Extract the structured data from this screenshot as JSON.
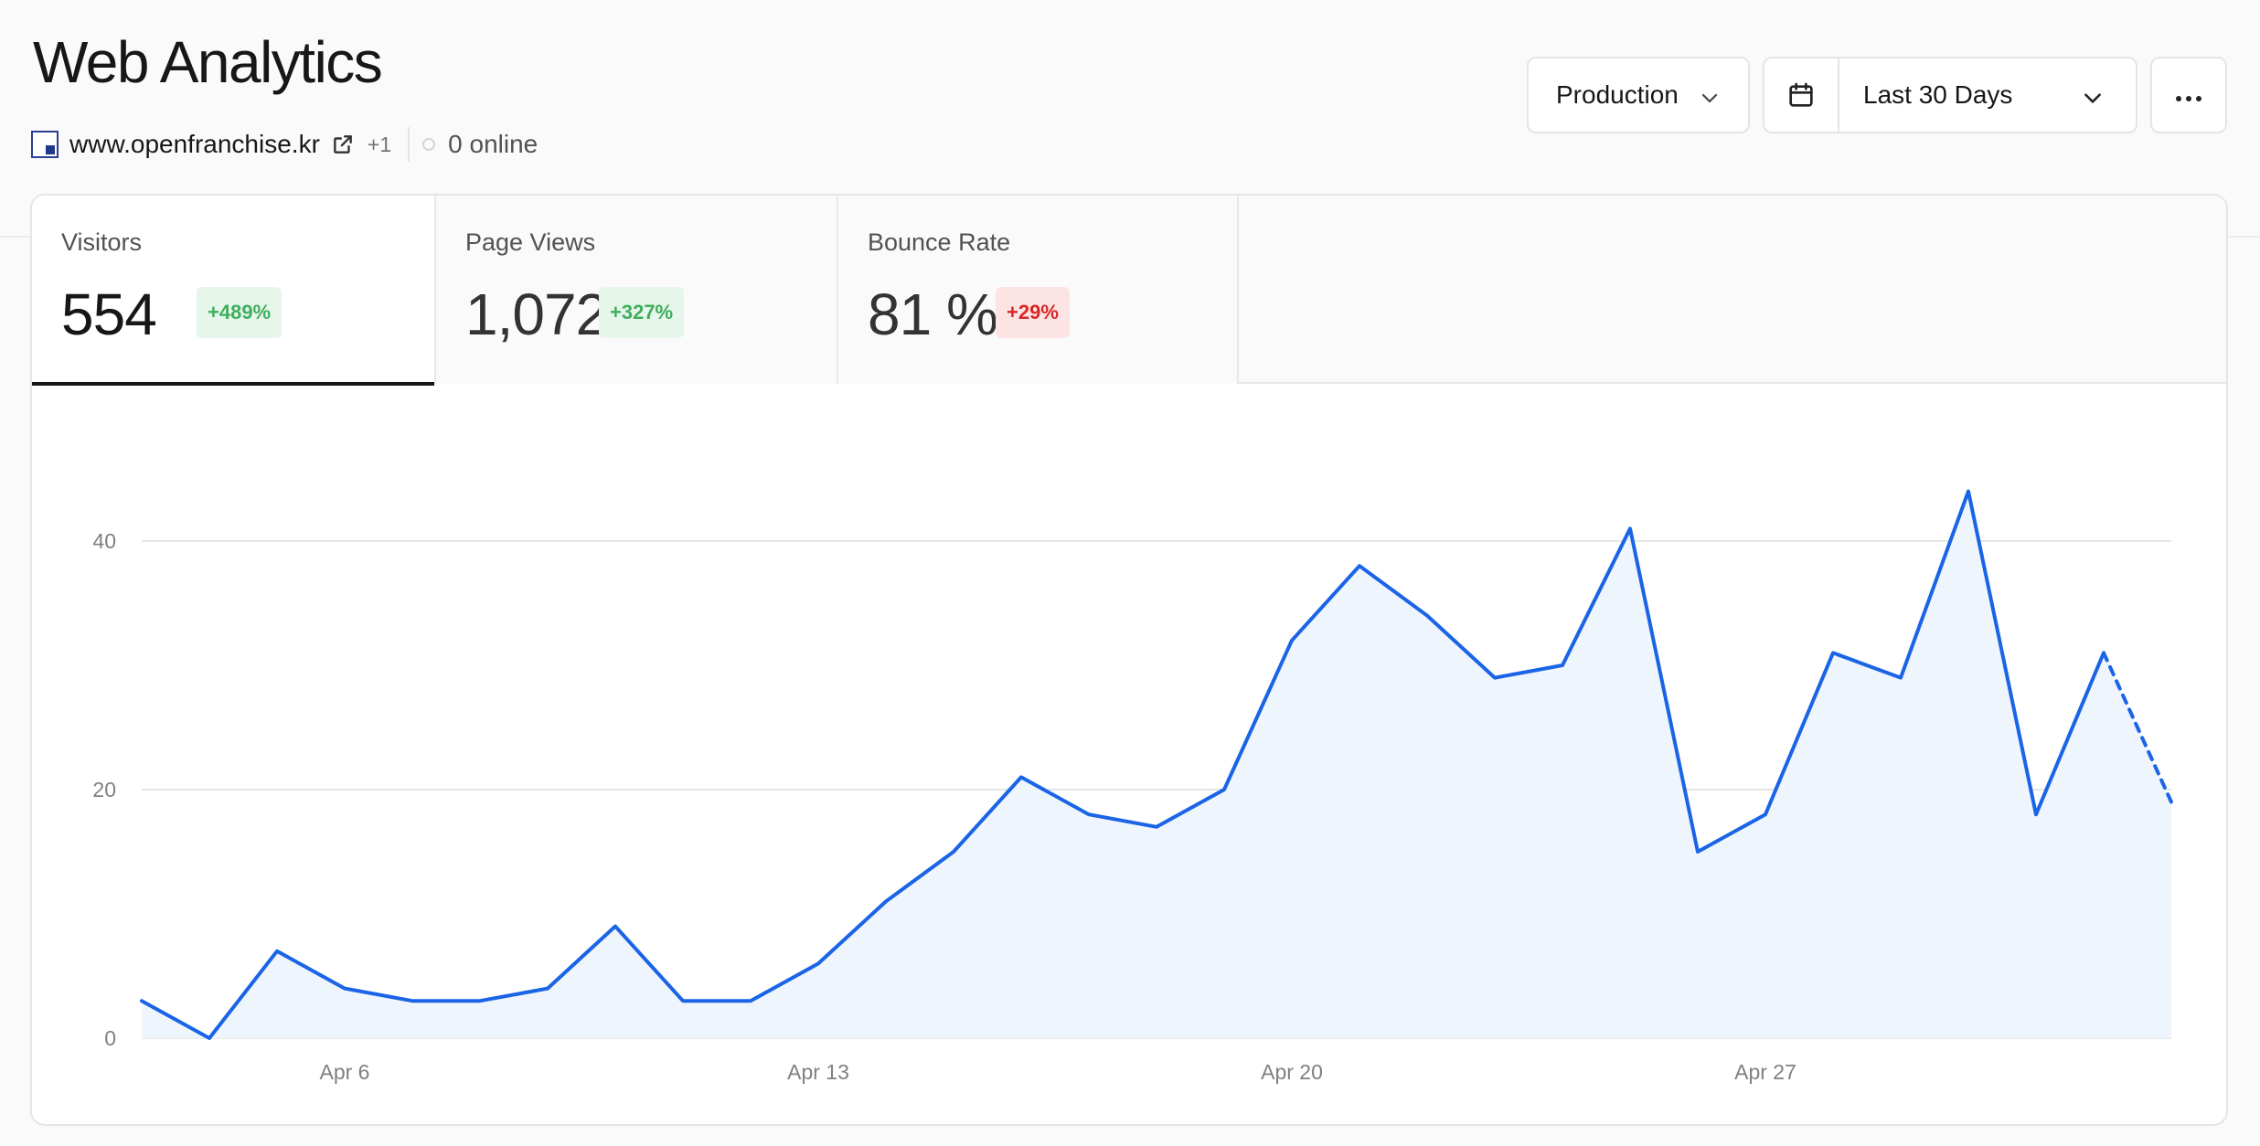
{
  "page": {
    "title": "Web Analytics"
  },
  "site": {
    "domain": "www.openfranchise.kr",
    "extra_count": "+1",
    "online": "0 online"
  },
  "controls": {
    "environment": "Production",
    "date_range": "Last 30 Days"
  },
  "icons": {
    "favicon": "site-favicon-icon",
    "external": "external-link-icon",
    "online": "online-status-dot",
    "environment_chevron": "chevron-down-icon",
    "calendar": "calendar-icon",
    "date_chevron": "chevron-down-icon",
    "more": "more-horizontal-icon"
  },
  "colors": {
    "accent": "#1a64e6",
    "positive": "#3fae5d",
    "negative": "#d92626"
  },
  "metrics": [
    {
      "label": "Visitors",
      "value": "554",
      "change": "+489%",
      "trend": "up",
      "active": true
    },
    {
      "label": "Page Views",
      "value": "1,072",
      "change": "+327%",
      "trend": "up",
      "active": false
    },
    {
      "label": "Bounce Rate",
      "value": "81 %",
      "change": "+29%",
      "trend": "down",
      "active": false
    }
  ],
  "chart_data": {
    "type": "area",
    "x": [
      "Apr 3",
      "Apr 4",
      "Apr 5",
      "Apr 6",
      "Apr 7",
      "Apr 8",
      "Apr 9",
      "Apr 10",
      "Apr 11",
      "Apr 12",
      "Apr 13",
      "Apr 14",
      "Apr 15",
      "Apr 16",
      "Apr 17",
      "Apr 18",
      "Apr 19",
      "Apr 20",
      "Apr 21",
      "Apr 22",
      "Apr 23",
      "Apr 24",
      "Apr 25",
      "Apr 26",
      "Apr 27",
      "Apr 28",
      "Apr 29",
      "Apr 30",
      "May 1",
      "May 2",
      "May 3"
    ],
    "series": [
      {
        "values": [
          3,
          0,
          7,
          4,
          3,
          3,
          4,
          9,
          3,
          3,
          6,
          11,
          15,
          21,
          18,
          17,
          20,
          32,
          38,
          34,
          29,
          30,
          41,
          15,
          18,
          31,
          29,
          44,
          18,
          31,
          19
        ]
      }
    ],
    "partial_last_point": true,
    "x_ticks": [
      "Apr 6",
      "Apr 13",
      "Apr 20",
      "Apr 27"
    ],
    "y_ticks": [
      0,
      20,
      40
    ],
    "ylim": [
      0,
      50
    ],
    "grid": true,
    "legend": "none"
  }
}
